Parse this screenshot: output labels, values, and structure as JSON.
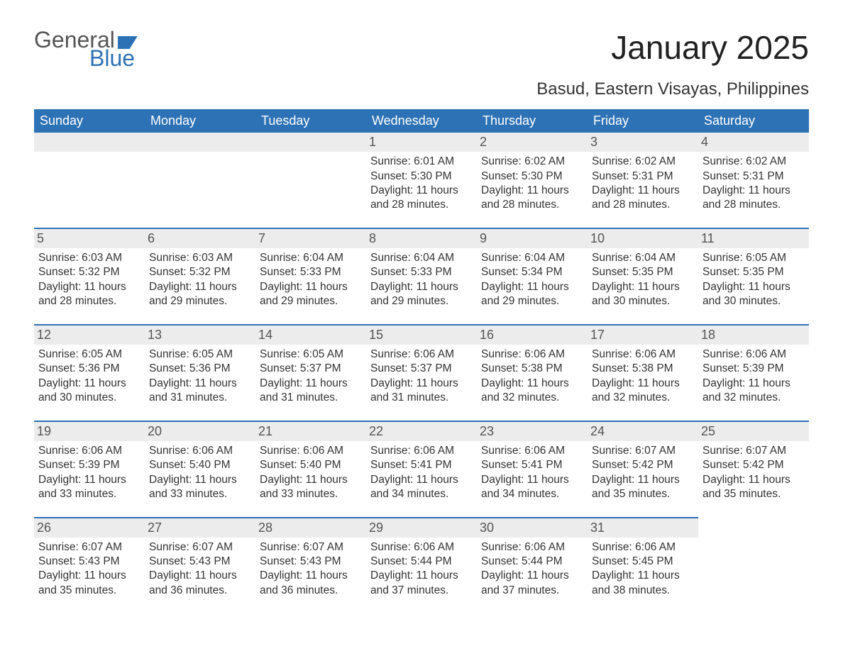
{
  "logo": {
    "word1": "General",
    "word2": "Blue"
  },
  "title": "January 2025",
  "location": "Basud, Eastern Visayas, Philippines",
  "colors": {
    "header_bg": "#2d72b5",
    "header_text": "#ffffff",
    "daynum_bg": "#ececec",
    "daynum_border": "#2d72b5",
    "body_text": "#333333",
    "logo_gray": "#555555",
    "logo_blue": "#2d72b5",
    "page_bg": "#ffffff"
  },
  "typography": {
    "title_fontsize": 46,
    "location_fontsize": 24,
    "th_fontsize": 18,
    "cell_fontsize": 15.5,
    "daynum_fontsize": 18,
    "font_family": "Arial"
  },
  "columns": [
    "Sunday",
    "Monday",
    "Tuesday",
    "Wednesday",
    "Thursday",
    "Friday",
    "Saturday"
  ],
  "weeks": [
    [
      null,
      null,
      null,
      {
        "d": "1",
        "sr": "Sunrise: 6:01 AM",
        "ss": "Sunset: 5:30 PM",
        "dl1": "Daylight: 11 hours",
        "dl2": "and 28 minutes."
      },
      {
        "d": "2",
        "sr": "Sunrise: 6:02 AM",
        "ss": "Sunset: 5:30 PM",
        "dl1": "Daylight: 11 hours",
        "dl2": "and 28 minutes."
      },
      {
        "d": "3",
        "sr": "Sunrise: 6:02 AM",
        "ss": "Sunset: 5:31 PM",
        "dl1": "Daylight: 11 hours",
        "dl2": "and 28 minutes."
      },
      {
        "d": "4",
        "sr": "Sunrise: 6:02 AM",
        "ss": "Sunset: 5:31 PM",
        "dl1": "Daylight: 11 hours",
        "dl2": "and 28 minutes."
      }
    ],
    [
      {
        "d": "5",
        "sr": "Sunrise: 6:03 AM",
        "ss": "Sunset: 5:32 PM",
        "dl1": "Daylight: 11 hours",
        "dl2": "and 28 minutes."
      },
      {
        "d": "6",
        "sr": "Sunrise: 6:03 AM",
        "ss": "Sunset: 5:32 PM",
        "dl1": "Daylight: 11 hours",
        "dl2": "and 29 minutes."
      },
      {
        "d": "7",
        "sr": "Sunrise: 6:04 AM",
        "ss": "Sunset: 5:33 PM",
        "dl1": "Daylight: 11 hours",
        "dl2": "and 29 minutes."
      },
      {
        "d": "8",
        "sr": "Sunrise: 6:04 AM",
        "ss": "Sunset: 5:33 PM",
        "dl1": "Daylight: 11 hours",
        "dl2": "and 29 minutes."
      },
      {
        "d": "9",
        "sr": "Sunrise: 6:04 AM",
        "ss": "Sunset: 5:34 PM",
        "dl1": "Daylight: 11 hours",
        "dl2": "and 29 minutes."
      },
      {
        "d": "10",
        "sr": "Sunrise: 6:04 AM",
        "ss": "Sunset: 5:35 PM",
        "dl1": "Daylight: 11 hours",
        "dl2": "and 30 minutes."
      },
      {
        "d": "11",
        "sr": "Sunrise: 6:05 AM",
        "ss": "Sunset: 5:35 PM",
        "dl1": "Daylight: 11 hours",
        "dl2": "and 30 minutes."
      }
    ],
    [
      {
        "d": "12",
        "sr": "Sunrise: 6:05 AM",
        "ss": "Sunset: 5:36 PM",
        "dl1": "Daylight: 11 hours",
        "dl2": "and 30 minutes."
      },
      {
        "d": "13",
        "sr": "Sunrise: 6:05 AM",
        "ss": "Sunset: 5:36 PM",
        "dl1": "Daylight: 11 hours",
        "dl2": "and 31 minutes."
      },
      {
        "d": "14",
        "sr": "Sunrise: 6:05 AM",
        "ss": "Sunset: 5:37 PM",
        "dl1": "Daylight: 11 hours",
        "dl2": "and 31 minutes."
      },
      {
        "d": "15",
        "sr": "Sunrise: 6:06 AM",
        "ss": "Sunset: 5:37 PM",
        "dl1": "Daylight: 11 hours",
        "dl2": "and 31 minutes."
      },
      {
        "d": "16",
        "sr": "Sunrise: 6:06 AM",
        "ss": "Sunset: 5:38 PM",
        "dl1": "Daylight: 11 hours",
        "dl2": "and 32 minutes."
      },
      {
        "d": "17",
        "sr": "Sunrise: 6:06 AM",
        "ss": "Sunset: 5:38 PM",
        "dl1": "Daylight: 11 hours",
        "dl2": "and 32 minutes."
      },
      {
        "d": "18",
        "sr": "Sunrise: 6:06 AM",
        "ss": "Sunset: 5:39 PM",
        "dl1": "Daylight: 11 hours",
        "dl2": "and 32 minutes."
      }
    ],
    [
      {
        "d": "19",
        "sr": "Sunrise: 6:06 AM",
        "ss": "Sunset: 5:39 PM",
        "dl1": "Daylight: 11 hours",
        "dl2": "and 33 minutes."
      },
      {
        "d": "20",
        "sr": "Sunrise: 6:06 AM",
        "ss": "Sunset: 5:40 PM",
        "dl1": "Daylight: 11 hours",
        "dl2": "and 33 minutes."
      },
      {
        "d": "21",
        "sr": "Sunrise: 6:06 AM",
        "ss": "Sunset: 5:40 PM",
        "dl1": "Daylight: 11 hours",
        "dl2": "and 33 minutes."
      },
      {
        "d": "22",
        "sr": "Sunrise: 6:06 AM",
        "ss": "Sunset: 5:41 PM",
        "dl1": "Daylight: 11 hours",
        "dl2": "and 34 minutes."
      },
      {
        "d": "23",
        "sr": "Sunrise: 6:06 AM",
        "ss": "Sunset: 5:41 PM",
        "dl1": "Daylight: 11 hours",
        "dl2": "and 34 minutes."
      },
      {
        "d": "24",
        "sr": "Sunrise: 6:07 AM",
        "ss": "Sunset: 5:42 PM",
        "dl1": "Daylight: 11 hours",
        "dl2": "and 35 minutes."
      },
      {
        "d": "25",
        "sr": "Sunrise: 6:07 AM",
        "ss": "Sunset: 5:42 PM",
        "dl1": "Daylight: 11 hours",
        "dl2": "and 35 minutes."
      }
    ],
    [
      {
        "d": "26",
        "sr": "Sunrise: 6:07 AM",
        "ss": "Sunset: 5:43 PM",
        "dl1": "Daylight: 11 hours",
        "dl2": "and 35 minutes."
      },
      {
        "d": "27",
        "sr": "Sunrise: 6:07 AM",
        "ss": "Sunset: 5:43 PM",
        "dl1": "Daylight: 11 hours",
        "dl2": "and 36 minutes."
      },
      {
        "d": "28",
        "sr": "Sunrise: 6:07 AM",
        "ss": "Sunset: 5:43 PM",
        "dl1": "Daylight: 11 hours",
        "dl2": "and 36 minutes."
      },
      {
        "d": "29",
        "sr": "Sunrise: 6:06 AM",
        "ss": "Sunset: 5:44 PM",
        "dl1": "Daylight: 11 hours",
        "dl2": "and 37 minutes."
      },
      {
        "d": "30",
        "sr": "Sunrise: 6:06 AM",
        "ss": "Sunset: 5:44 PM",
        "dl1": "Daylight: 11 hours",
        "dl2": "and 37 minutes."
      },
      {
        "d": "31",
        "sr": "Sunrise: 6:06 AM",
        "ss": "Sunset: 5:45 PM",
        "dl1": "Daylight: 11 hours",
        "dl2": "and 38 minutes."
      },
      null
    ]
  ]
}
